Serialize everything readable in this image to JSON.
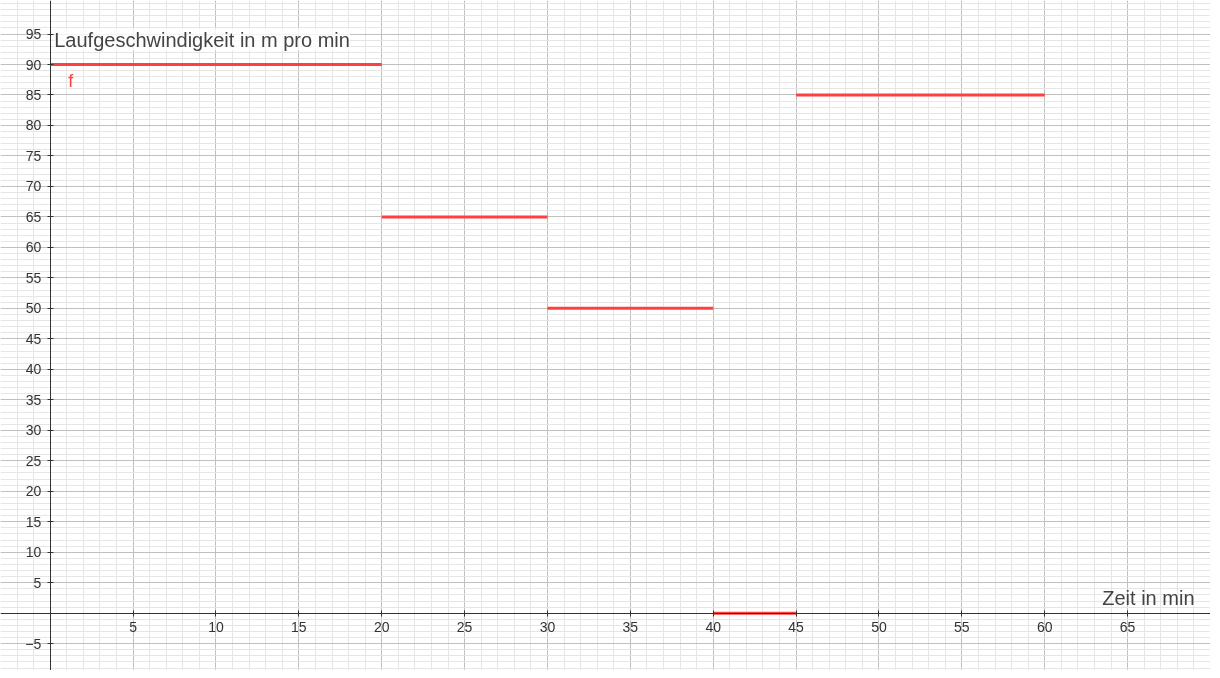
{
  "chart_data": {
    "type": "line",
    "xlabel": "Zeit in min",
    "ylabel": "Laufgeschwindigkeit in m pro min",
    "xlim": [
      -3,
      70
    ],
    "ylim": [
      -9.4,
      100.5
    ],
    "xticks": [
      5,
      10,
      15,
      20,
      25,
      30,
      35,
      40,
      45,
      50,
      55,
      60,
      65
    ],
    "yticks": [
      -5,
      5,
      10,
      15,
      20,
      25,
      30,
      35,
      40,
      45,
      50,
      55,
      60,
      65,
      70,
      75,
      80,
      85,
      90,
      95
    ],
    "grid": true,
    "marker": "none",
    "line_style": "solid",
    "series": [
      {
        "name": "f",
        "color": "#ff4040",
        "x": [
          0,
          20
        ],
        "values": [
          90,
          90
        ]
      },
      {
        "color": "#ff4040",
        "x": [
          20,
          30
        ],
        "values": [
          65,
          65
        ]
      },
      {
        "color": "#ff4040",
        "x": [
          30,
          40
        ],
        "values": [
          50,
          50
        ]
      },
      {
        "color": "#ff4040",
        "x": [
          40,
          45
        ],
        "values": [
          0,
          0
        ]
      },
      {
        "color": "#ff4040",
        "x": [
          45,
          60
        ],
        "values": [
          85,
          85
        ]
      }
    ]
  }
}
